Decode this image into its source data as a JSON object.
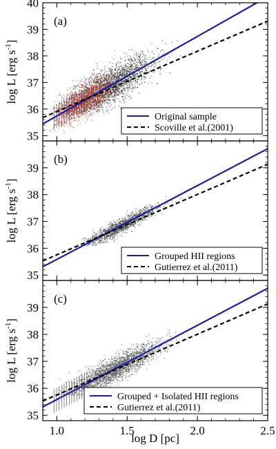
{
  "chart_data": [
    {
      "type": "scatter",
      "panel_label": "(a)",
      "xlabel": "",
      "ylabel_base": "log L [erg s",
      "ylabel_exp": "-1",
      "ylabel_close": "]",
      "xlim": [
        0.9,
        2.5
      ],
      "ylim": [
        34.8,
        40.0
      ],
      "yticks": [
        35,
        36,
        37,
        38,
        39,
        40
      ],
      "xticks": [
        1.0,
        1.5,
        2.0,
        2.5
      ],
      "show_xtick_labels": false,
      "legend_position": "bottom-right",
      "scatter": {
        "color": "#444444",
        "center_x": 1.35,
        "center_y": 36.8,
        "extent_x": [
          0.97,
          2.08
        ],
        "extent_y": [
          35.85,
          38.6
        ],
        "highlight_color": "#c0392b",
        "highlight_extent_x": [
          0.95,
          1.45
        ]
      },
      "series": [
        {
          "name": "Original sample",
          "style": "solid",
          "color": "#1a1aa8",
          "x": [
            0.9,
            2.5
          ],
          "y": [
            35.44,
            40.23
          ]
        },
        {
          "name": "Scoville et al.(2001)",
          "style": "dashed",
          "color": "#000000",
          "x": [
            0.9,
            2.5
          ],
          "y": [
            35.68,
            39.31
          ]
        }
      ]
    },
    {
      "type": "scatter",
      "panel_label": "(b)",
      "xlabel": "",
      "ylabel_base": "log L [erg s",
      "ylabel_exp": "-1",
      "ylabel_close": "]",
      "xlim": [
        0.9,
        2.5
      ],
      "ylim": [
        34.8,
        40.0
      ],
      "yticks": [
        35,
        36,
        37,
        38,
        39
      ],
      "xticks": [
        1.0,
        1.5,
        2.0,
        2.5
      ],
      "show_xtick_labels": false,
      "legend_position": "bottom-right",
      "scatter": {
        "color": "#555555",
        "center_x": 1.45,
        "center_y": 37.0,
        "extent_x": [
          1.15,
          1.92
        ],
        "extent_y": [
          36.1,
          38.6
        ]
      },
      "series": [
        {
          "name": "Grouped HII regions",
          "style": "solid",
          "color": "#1a1aa8",
          "x": [
            0.9,
            2.5
          ],
          "y": [
            35.31,
            39.71
          ]
        },
        {
          "name": "Gutierrez et al.(2011)",
          "style": "dashed",
          "color": "#000000",
          "x": [
            0.9,
            2.5
          ],
          "y": [
            35.53,
            39.13
          ]
        }
      ]
    },
    {
      "type": "scatter",
      "panel_label": "(c)",
      "xlabel": "log D [pc]",
      "ylabel_base": "log L [erg s",
      "ylabel_exp": "-1",
      "ylabel_close": "]",
      "xlim": [
        0.9,
        2.5
      ],
      "ylim": [
        34.8,
        40.0
      ],
      "yticks": [
        35,
        36,
        37,
        38,
        39
      ],
      "xticks": [
        1.0,
        1.5,
        2.0,
        2.5
      ],
      "show_xtick_labels": true,
      "legend_position": "bottom-right",
      "scatter": {
        "color": "#666666",
        "center_x": 1.4,
        "center_y": 36.8,
        "extent_x": [
          0.98,
          2.05
        ],
        "extent_y": [
          35.75,
          38.6
        ]
      },
      "series": [
        {
          "name": "Grouped + Isolated HII regions",
          "style": "solid",
          "color": "#1a1aa8",
          "x": [
            0.9,
            2.5
          ],
          "y": [
            35.31,
            39.71
          ]
        },
        {
          "name": "Gutierrez et al.(2011)",
          "style": "dashed",
          "color": "#000000",
          "x": [
            0.9,
            2.5
          ],
          "y": [
            35.53,
            39.13
          ]
        }
      ]
    }
  ]
}
